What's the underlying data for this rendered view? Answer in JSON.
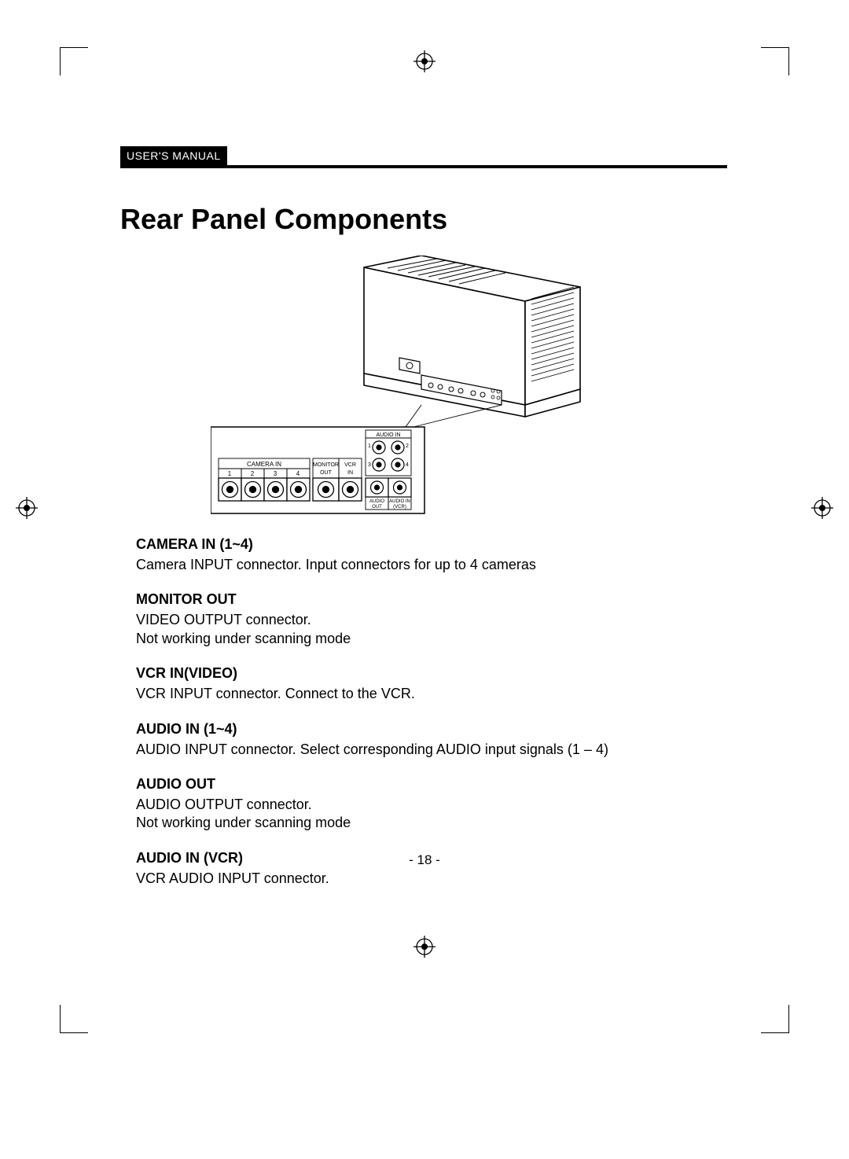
{
  "header": {
    "label": "USER'S MANUAL"
  },
  "title": "Rear Panel Components",
  "panel_labels": {
    "camera_in": "CAMERA IN",
    "camera_nums": [
      "1",
      "2",
      "3",
      "4"
    ],
    "monitor_out_top": "MONITOR",
    "monitor_out_bot": "OUT",
    "vcr_top": "VCR",
    "vcr_bot": "IN",
    "audio_in": "AUDIO IN",
    "audio_nums": [
      "1",
      "2",
      "3",
      "4"
    ],
    "audio_out_top": "AUDIO",
    "audio_out_bot": "OUT",
    "audio_in_vcr_top": "AUDIO IN",
    "audio_in_vcr_bot": "(VCR)"
  },
  "defs": [
    {
      "title": "CAMERA IN (1~4)",
      "body": "Camera INPUT connector. Input connectors for up to 4 cameras"
    },
    {
      "title": "MONITOR OUT",
      "body": "VIDEO OUTPUT connector.\nNot working under scanning mode"
    },
    {
      "title": "VCR IN(VIDEO)",
      "body": "VCR INPUT connector. Connect to the VCR."
    },
    {
      "title": "AUDIO IN (1~4)",
      "body": "AUDIO INPUT connector. Select corresponding AUDIO input signals (1 – 4)"
    },
    {
      "title": "AUDIO OUT",
      "body": "AUDIO OUTPUT connector.\nNot working under scanning mode"
    },
    {
      "title": "AUDIO IN (VCR)",
      "body": "VCR AUDIO INPUT connector."
    }
  ],
  "page_number": "- 18 -",
  "style": {
    "page_bg": "#ffffff",
    "text_color": "#000000",
    "title_fontsize": 36,
    "def_title_fontsize": 18,
    "def_body_fontsize": 18,
    "header_bg": "#000000",
    "header_fg": "#ffffff"
  }
}
